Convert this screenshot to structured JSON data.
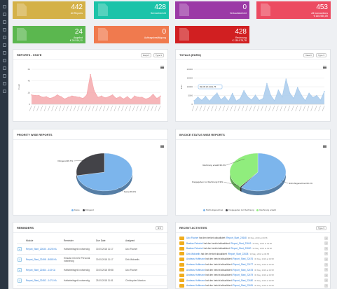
{
  "sidebar": {
    "icons": [
      "home-icon",
      "grid-icon",
      "chart-icon",
      "users-icon",
      "doc-icon",
      "folder-icon",
      "mail-icon",
      "settings-icon",
      "calendar-icon",
      "list-icon",
      "archive-icon",
      "cog-icon"
    ]
  },
  "tiles": [
    {
      "number": "442",
      "label": "All Reports",
      "sub": "",
      "color": "#d4b148"
    },
    {
      "number": "428",
      "label": "Servicebericht",
      "sub": "",
      "color": "#1cc3a9"
    },
    {
      "number": "0",
      "label": "Verkaufsbericht",
      "sub": "",
      "color": "#9b3aa6"
    },
    {
      "number": "453",
      "label": "All transactions",
      "sub": "€ 165.980,89",
      "color": "#ec4b61"
    },
    {
      "number": "24",
      "label": "Angebot",
      "sub": "€ 26.514,11",
      "color": "#5bb74f"
    },
    {
      "number": "0",
      "label": "Auftragsbestätigung",
      "sub": "",
      "color": "#f07a4e"
    },
    {
      "number": "428",
      "label": "Rechnung",
      "sub": "€ 139.578,78",
      "color": "#d11f21"
    }
  ],
  "reports_state": {
    "title": "REPORTS - STATE",
    "btn_days": "Days ▾",
    "btn_type": "Type ▾",
    "ylabel": "Count"
  },
  "totals": {
    "title": "TOTALS (EURO)",
    "btn_view": "View ▾",
    "btn_type": "Type ▾",
    "ylabel": "Euro",
    "tooltip": "82,08.18 4431,76"
  },
  "priority": {
    "title": "PRIORITY WISE REPORTS",
    "legend": [
      "Keine",
      "Dringend"
    ],
    "label_a": "Dringend:26.7%",
    "label_b": "Keine:69.0%"
  },
  "invoice": {
    "title": "INVOICE STATUS WISE REPORTS",
    "legend": [
      "Nicht abgerechnet",
      "Freigegeben zur Rechnung",
      "Rechnung erstellt"
    ],
    "label_a": "Rechnung erstellt:39.2%",
    "label_b": "Freigegeben zur Rechnung:0.9%",
    "label_c": "Nicht Abgerechnet:60.1%"
  },
  "reminders": {
    "title": "REMINDERS",
    "menu_btn": "⚙ ▾",
    "headers": [
      "",
      "Module",
      "Reminder",
      "Due Date",
      "Assigned"
    ],
    "rows": [
      {
        "module": "Report_Start_22630 - 4025 KA",
        "reminder": "Haftarbeitsgeld notwendig",
        "due": "30.05.2018 11:17",
        "assigned": "Udo Fischer"
      },
      {
        "module": "Report_Start_22498 - 8085 KA",
        "reminder": "Einsatz mit mehr Personal notwendig",
        "due": "30.05.2018 11:17",
        "assigned": "Dirk Michaelis"
      },
      {
        "module": "Report_Start_22464 - 143 KA",
        "reminder": "Haftarbeitsgeld notwendig",
        "due": "30.05.2018 09:58",
        "assigned": "Udo Fischer"
      },
      {
        "module": "Report_Start_22452 - 1471 KA",
        "reminder": "Haftarbeitsgeld notwendig",
        "due": "25.05.2018 11:51",
        "assigned": "Christopher Marzion"
      },
      {
        "module": "Report_Start_22520 - 8 10 KA",
        "reminder": "Haftarbeitsgeld notwendig",
        "due": "25.05.2018 09:58",
        "assigned": "Udo Fischer"
      }
    ]
  },
  "activities": {
    "title": "RECENT ACTIVITIES",
    "btn_type": "Type ▾",
    "items": [
      {
        "who": "Udo Fischer",
        "text": "hat den bericht aktualisiert",
        "link": "/Report_Start_22648",
        "ts": "30 May, 2018 at 09:58"
      },
      {
        "who": "Bastian Petschel",
        "text": "hat den bericht aktualisiert",
        "link": "/Report_Start_22649",
        "ts": "30 May, 2018 at 09:58"
      },
      {
        "who": "Bastian Petschel",
        "text": "hat den bericht aktualisiert",
        "link": "/Report_Start_22650",
        "ts": "30 May, 2018 at 09:58"
      },
      {
        "who": "Dirk Michaelis",
        "text": "hat den bericht aktualisiert",
        "link": "/Report_Start_22638",
        "ts": "30 May, 2018 at 09:58"
      },
      {
        "who": "Andreas Hoffmann",
        "text": "hat den bericht aktualisiert",
        "link": "/Report_Start_22476",
        "ts": "30 May, 2018 at 09:58"
      },
      {
        "who": "Andreas Hoffmann",
        "text": "hat den bericht aktualisiert",
        "link": "/Report_Start_22477",
        "ts": "30 May, 2018 at 09:58"
      },
      {
        "who": "Andreas Hoffmann",
        "text": "hat den bericht aktualisiert",
        "link": "/Report_Start_22478",
        "ts": "30 May, 2018 at 09:58"
      },
      {
        "who": "Andreas Hoffmann",
        "text": "hat den bericht aktualisiert",
        "link": "/Report_Start_22479",
        "ts": "30 May, 2018 at 09:58"
      },
      {
        "who": "Andreas Hoffmann",
        "text": "hat den bericht aktualisiert",
        "link": "/Report_Start_22480",
        "ts": "30 May, 2018 at 09:58"
      },
      {
        "who": "Andreas Hoffmann",
        "text": "hat den bericht aktualisiert",
        "link": "/Report_Start_22481",
        "ts": "30 May, 2018 at 09:58"
      }
    ]
  },
  "chart_data": [
    {
      "type": "area",
      "title": "REPORTS - STATE",
      "ylabel": "Count",
      "ylim": [
        0,
        60
      ],
      "yticks": [
        0,
        20,
        40,
        60
      ],
      "color": "#f5a9ad",
      "values": [
        16,
        15,
        15,
        12,
        13,
        10,
        12,
        16,
        13,
        9,
        12,
        14,
        13,
        12,
        10,
        16,
        51,
        23,
        12,
        14,
        11,
        13,
        16,
        10,
        13,
        9,
        13,
        8,
        14,
        12,
        12,
        9,
        11,
        17,
        10,
        14
      ]
    },
    {
      "type": "area",
      "title": "TOTALS (EURO)",
      "ylabel": "Euro",
      "ylim": [
        0,
        20000
      ],
      "yticks": [
        0,
        5000,
        10000,
        15000,
        20000
      ],
      "color": "#a9cbec",
      "values": [
        2000,
        4100,
        2300,
        4500,
        1800,
        4300,
        6400,
        2600,
        4400,
        1700,
        6200,
        1900,
        3200,
        7800,
        4200,
        2500,
        5200,
        2200,
        3300,
        11800,
        5100,
        2000,
        8100,
        4200,
        14400,
        6300,
        3400,
        9600,
        5200,
        2100,
        6300,
        3900,
        5000,
        2400,
        7300
      ]
    },
    {
      "type": "pie",
      "title": "PRIORITY WISE REPORTS",
      "labels": [
        "Keine",
        "Dringend"
      ],
      "values": [
        69.0,
        26.7
      ],
      "colors": [
        "#7cb5ec",
        "#434348"
      ]
    },
    {
      "type": "pie",
      "title": "INVOICE STATUS WISE REPORTS",
      "labels": [
        "Nicht Abgerechnet",
        "Freigegeben zur Rechnung",
        "Rechnung erstellt"
      ],
      "values": [
        60.1,
        0.9,
        39.2
      ],
      "colors": [
        "#7cb5ec",
        "#434348",
        "#90ed7d"
      ]
    }
  ]
}
